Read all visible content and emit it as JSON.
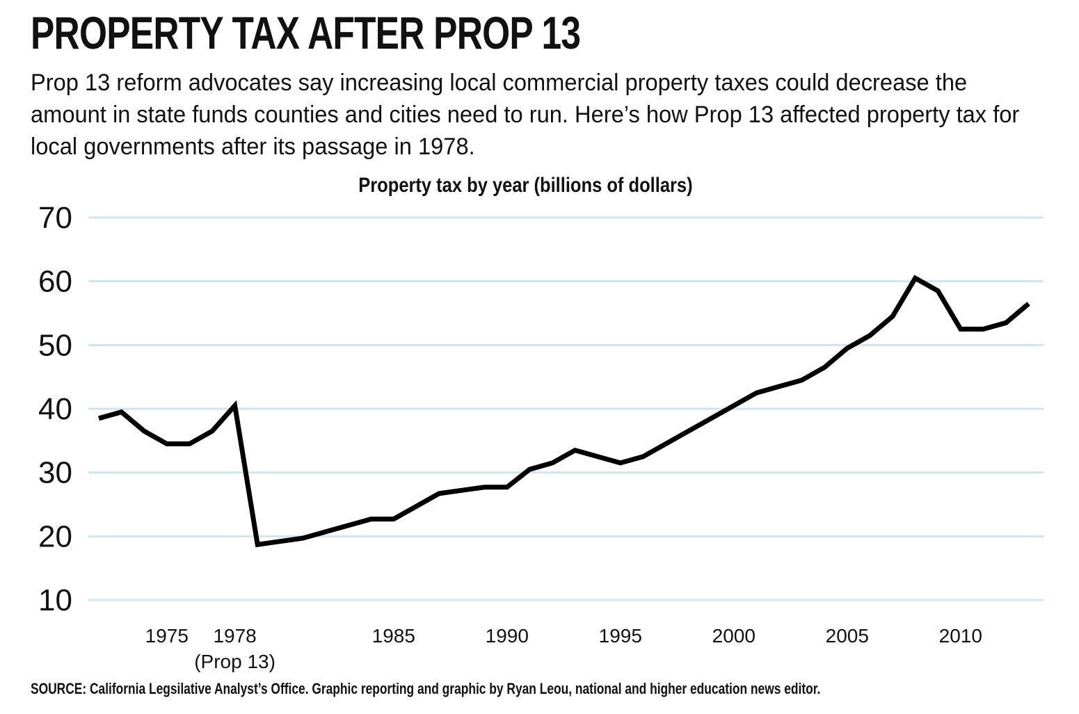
{
  "header": {
    "title": "PROPERTY TAX AFTER PROP 13",
    "intro": "Prop 13 reform advocates say increasing local commercial property taxes could decrease the amount in state funds counties and cities need to run. Here’s how Prop 13 affected property tax for local governments after its passage in 1978."
  },
  "footer": {
    "source": "SOURCE: California Legsilative Analyst’s Office. Graphic reporting and graphic by Ryan Leou, national and higher education news editor."
  },
  "chart_data": {
    "type": "line",
    "title": "Property tax by year (billions of dollars)",
    "xlabel": "",
    "ylabel": "",
    "ylim": [
      10,
      70
    ],
    "xlim": [
      1972,
      2013
    ],
    "yticks": [
      70,
      60,
      50,
      40,
      30,
      20,
      10
    ],
    "xticks": [
      {
        "year": 1975,
        "label": "1975"
      },
      {
        "year": 1978,
        "label": "1978",
        "sublabel": "(Prop 13)"
      },
      {
        "year": 1985,
        "label": "1985"
      },
      {
        "year": 1990,
        "label": "1990"
      },
      {
        "year": 1995,
        "label": "1995"
      },
      {
        "year": 2000,
        "label": "2000"
      },
      {
        "year": 2005,
        "label": "2005"
      },
      {
        "year": 2010,
        "label": "2010"
      }
    ],
    "grid": true,
    "colors": {
      "line": "#000000",
      "grid": "#cfe6ee"
    },
    "series": [
      {
        "name": "Property tax",
        "x": [
          1972,
          1973,
          1974,
          1975,
          1976,
          1977,
          1978,
          1979,
          1980,
          1981,
          1982,
          1983,
          1984,
          1985,
          1986,
          1987,
          1988,
          1989,
          1990,
          1991,
          1992,
          1993,
          1994,
          1995,
          1996,
          1997,
          1998,
          1999,
          2000,
          2001,
          2002,
          2003,
          2004,
          2005,
          2006,
          2007,
          2008,
          2009,
          2010,
          2011,
          2012,
          2013
        ],
        "values": [
          38.5,
          39.5,
          36.5,
          34.5,
          34.5,
          36.5,
          40.5,
          18.7,
          19.2,
          19.7,
          20.7,
          21.7,
          22.7,
          22.7,
          24.7,
          26.7,
          27.2,
          27.7,
          27.7,
          30.5,
          31.5,
          33.5,
          32.5,
          31.5,
          32.5,
          34.5,
          36.5,
          38.5,
          40.5,
          42.5,
          43.5,
          44.5,
          46.5,
          49.5,
          51.5,
          54.5,
          60.5,
          58.5,
          52.5,
          52.5,
          53.5,
          56.5
        ]
      }
    ]
  }
}
